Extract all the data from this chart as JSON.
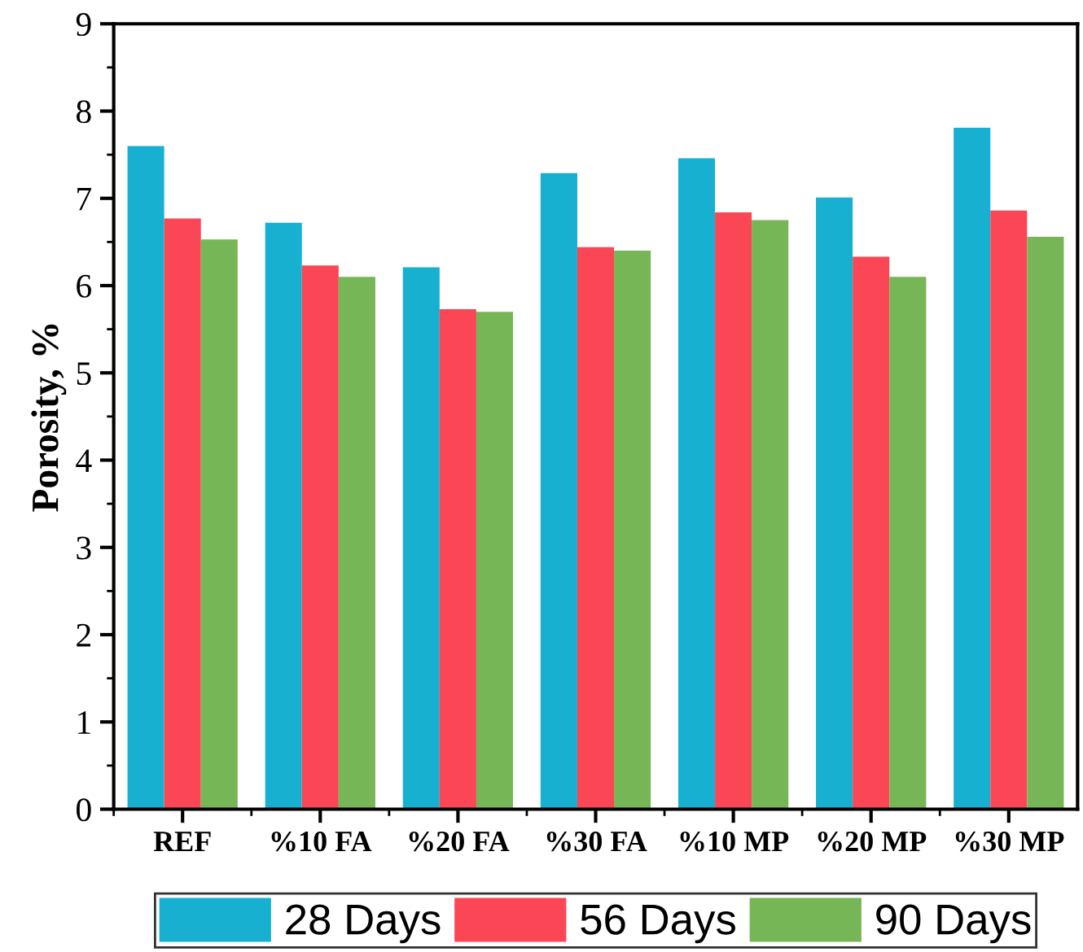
{
  "chart_data": {
    "type": "bar",
    "ylabel": "Porosity, %",
    "categories": [
      "REF",
      "%10 FA",
      "%20 FA",
      "%30 FA",
      "%10 MP",
      "%20 MP",
      "%30 MP"
    ],
    "series": [
      {
        "name": "28 Days",
        "color": "#17b0d0",
        "values": [
          7.6,
          6.72,
          6.21,
          7.29,
          7.46,
          7.01,
          7.81
        ]
      },
      {
        "name": "56 Days",
        "color": "#fb4655",
        "values": [
          6.77,
          6.23,
          5.73,
          6.44,
          6.84,
          6.33,
          6.86
        ]
      },
      {
        "name": "90 Days",
        "color": "#77b657",
        "values": [
          6.53,
          6.1,
          5.7,
          6.4,
          6.75,
          6.1,
          6.56
        ]
      }
    ],
    "ylim": [
      0,
      9
    ],
    "yticks": [
      0,
      1,
      2,
      3,
      4,
      5,
      6,
      7,
      8,
      9
    ],
    "grid": false,
    "legend": "bottom"
  }
}
